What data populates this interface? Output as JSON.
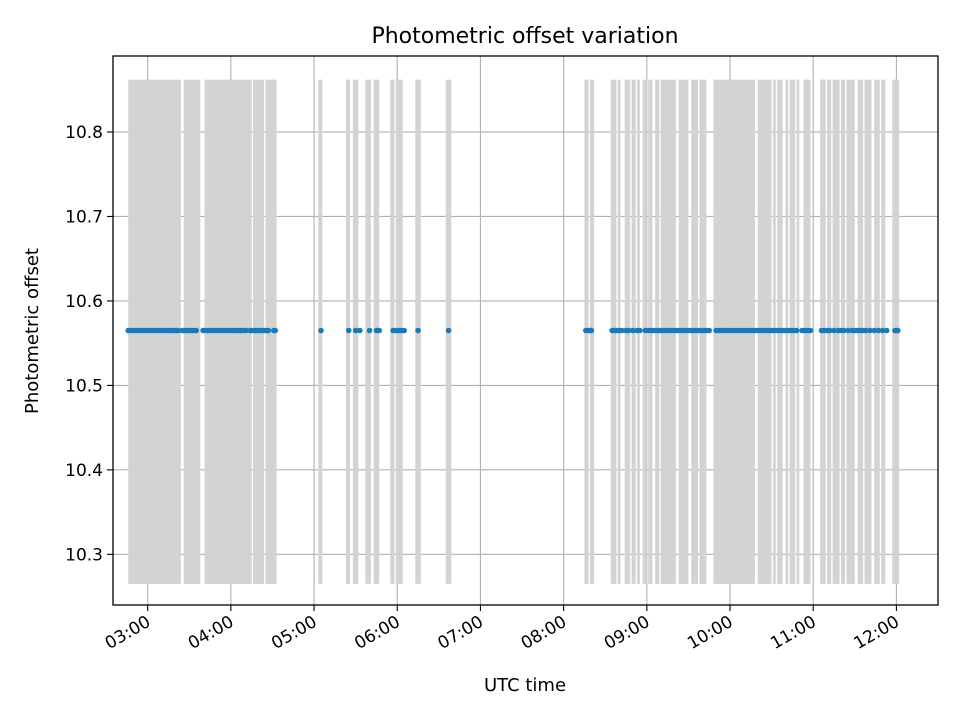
{
  "chart_data": {
    "type": "scatter",
    "title": "Photometric offset variation",
    "xlabel": "UTC time",
    "ylabel": "Photometric offset",
    "xlim": [
      "02:35",
      "12:30"
    ],
    "ylim": [
      10.24,
      10.89
    ],
    "grid": true,
    "x_ticks": [
      "03:00",
      "04:00",
      "05:00",
      "06:00",
      "07:00",
      "08:00",
      "09:00",
      "10:00",
      "11:00",
      "12:00"
    ],
    "y_ticks": [
      "10.3",
      "10.4",
      "10.5",
      "10.6",
      "10.7",
      "10.8"
    ],
    "error_bar_range": [
      10.265,
      10.862
    ],
    "colors": {
      "points": "#1f77b4",
      "error_bars": "#d3d3d3",
      "grid": "#b0b0b0"
    },
    "point_value": 10.565,
    "points_x": [
      "02:46",
      "02:48",
      "02:49",
      "02:51",
      "02:52",
      "02:54",
      "02:55",
      "02:57",
      "02:58",
      "03:00",
      "03:01",
      "03:03",
      "03:04",
      "03:06",
      "03:07",
      "03:09",
      "03:10",
      "03:12",
      "03:13",
      "03:15",
      "03:16",
      "03:18",
      "03:19",
      "03:21",
      "03:22",
      "03:25",
      "03:26",
      "03:28",
      "03:29",
      "03:31",
      "03:32",
      "03:34",
      "03:35",
      "03:40",
      "03:41",
      "03:43",
      "03:44",
      "03:46",
      "03:47",
      "03:49",
      "03:50",
      "03:52",
      "03:53",
      "03:55",
      "03:56",
      "03:58",
      "03:59",
      "04:01",
      "04:02",
      "04:04",
      "04:05",
      "04:07",
      "04:08",
      "04:10",
      "04:11",
      "04:14",
      "04:15",
      "04:17",
      "04:18",
      "04:20",
      "04:21",
      "04:23",
      "04:24",
      "04:26",
      "04:27",
      "04:31",
      "04:32",
      "05:05",
      "05:25",
      "05:30",
      "05:33",
      "05:40",
      "05:45",
      "05:47",
      "05:57",
      "05:59",
      "06:01",
      "06:03",
      "06:05",
      "06:15",
      "06:37",
      "08:16",
      "08:18",
      "08:19",
      "08:20",
      "08:35",
      "08:37",
      "08:38",
      "08:40",
      "08:42",
      "08:45",
      "08:47",
      "08:50",
      "08:53",
      "08:55",
      "08:59",
      "09:01",
      "09:03",
      "09:05",
      "09:07",
      "09:09",
      "09:11",
      "09:13",
      "09:15",
      "09:17",
      "09:19",
      "09:21",
      "09:23",
      "09:25",
      "09:27",
      "09:29",
      "09:31",
      "09:33",
      "09:35",
      "09:37",
      "09:39",
      "09:41",
      "09:43",
      "09:45",
      "09:50",
      "09:52",
      "09:54",
      "09:56",
      "09:58",
      "10:00",
      "10:02",
      "10:04",
      "10:06",
      "10:08",
      "10:10",
      "10:12",
      "10:14",
      "10:16",
      "10:18",
      "10:20",
      "10:22",
      "10:24",
      "10:26",
      "10:28",
      "10:30",
      "10:32",
      "10:34",
      "10:36",
      "10:38",
      "10:40",
      "10:42",
      "10:44",
      "10:46",
      "10:48",
      "10:52",
      "10:54",
      "10:56",
      "10:58",
      "11:06",
      "11:08",
      "11:10",
      "11:12",
      "11:15",
      "11:18",
      "11:20",
      "11:22",
      "11:25",
      "11:28",
      "11:30",
      "11:32",
      "11:34",
      "11:36",
      "11:38",
      "11:41",
      "11:44",
      "11:47",
      "11:50",
      "11:53",
      "11:59",
      "12:00",
      "12:01"
    ],
    "error_bands": [
      [
        "02:46",
        "03:24"
      ],
      [
        "03:26",
        "03:38"
      ],
      [
        "03:41",
        "04:15"
      ],
      [
        "04:16",
        "04:24"
      ],
      [
        "04:25",
        "04:33"
      ],
      [
        "05:03",
        "05:06"
      ],
      [
        "05:23",
        "05:26"
      ],
      [
        "05:28",
        "05:32"
      ],
      [
        "05:37",
        "05:41"
      ],
      [
        "05:43",
        "05:47"
      ],
      [
        "05:55",
        "05:58"
      ],
      [
        "05:59",
        "06:04"
      ],
      [
        "06:13",
        "06:17"
      ],
      [
        "06:35",
        "06:39"
      ],
      [
        "08:15",
        "08:18"
      ],
      [
        "08:19",
        "08:22"
      ],
      [
        "08:34",
        "08:38"
      ],
      [
        "08:39",
        "08:41"
      ],
      [
        "08:44",
        "08:48"
      ],
      [
        "08:49",
        "08:52"
      ],
      [
        "08:53",
        "08:55"
      ],
      [
        "08:57",
        "09:00"
      ],
      [
        "09:01",
        "09:04"
      ],
      [
        "09:06",
        "09:09"
      ],
      [
        "09:10",
        "09:21"
      ],
      [
        "09:23",
        "09:30"
      ],
      [
        "09:32",
        "09:37"
      ],
      [
        "09:38",
        "09:43"
      ],
      [
        "09:48",
        "10:18"
      ],
      [
        "10:20",
        "10:30"
      ],
      [
        "10:31",
        "10:33"
      ],
      [
        "10:34",
        "10:38"
      ],
      [
        "10:40",
        "10:42"
      ],
      [
        "10:43",
        "10:47"
      ],
      [
        "10:48",
        "10:50"
      ],
      [
        "10:53",
        "10:58"
      ],
      [
        "11:05",
        "11:09"
      ],
      [
        "11:10",
        "11:13"
      ],
      [
        "11:14",
        "11:19"
      ],
      [
        "11:20",
        "11:23"
      ],
      [
        "11:24",
        "11:30"
      ],
      [
        "11:32",
        "11:36"
      ],
      [
        "11:37",
        "11:42"
      ],
      [
        "11:44",
        "11:48"
      ],
      [
        "11:49",
        "11:52"
      ],
      [
        "11:57",
        "12:02"
      ]
    ]
  }
}
